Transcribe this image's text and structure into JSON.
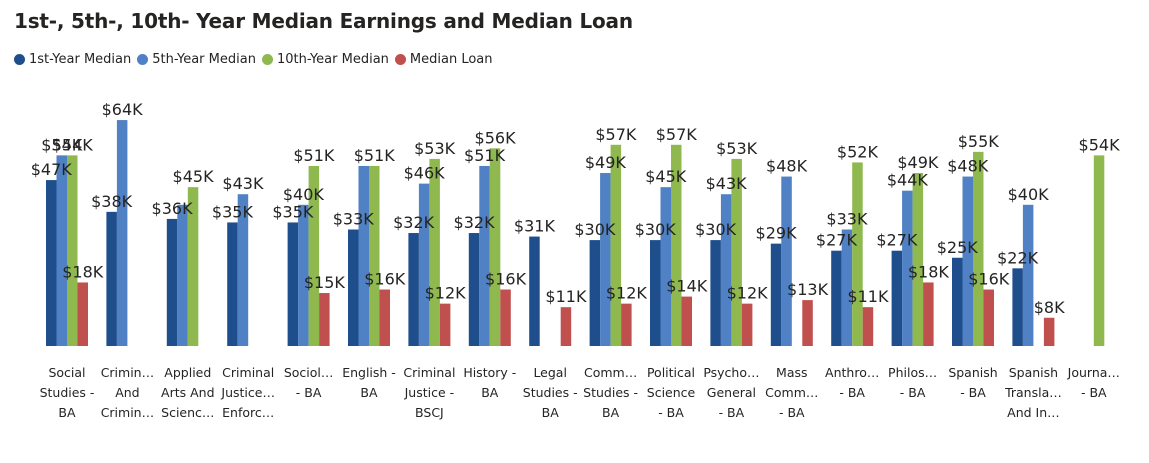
{
  "chart_data": {
    "type": "bar",
    "title": "1st-, 5th-, 10th- Year Median Earnings and Median Loan",
    "legend_position": "top-left",
    "grid": false,
    "colors": [
      "#1f4e8c",
      "#4f81c4",
      "#8fb84e",
      "#c0504d"
    ],
    "series": [
      {
        "name": "1st-Year Median",
        "values": [
          47,
          38,
          36,
          35,
          35,
          33,
          32,
          32,
          31,
          30,
          30,
          30,
          29,
          27,
          27,
          25,
          22,
          null
        ]
      },
      {
        "name": "5th-Year Median",
        "values": [
          54,
          64,
          40,
          43,
          40,
          51,
          46,
          51,
          null,
          49,
          45,
          43,
          48,
          33,
          44,
          48,
          40,
          null
        ]
      },
      {
        "name": "10th-Year Median",
        "values": [
          54,
          null,
          45,
          null,
          51,
          51,
          53,
          56,
          null,
          57,
          57,
          53,
          null,
          52,
          49,
          55,
          null,
          54
        ]
      },
      {
        "name": "Median Loan",
        "values": [
          18,
          null,
          null,
          null,
          15,
          16,
          12,
          16,
          11,
          12,
          14,
          12,
          13,
          11,
          18,
          16,
          8,
          null
        ]
      }
    ],
    "labels": [
      [
        "$47K",
        "$54K",
        "$54K",
        "$18K"
      ],
      [
        "$38K",
        "$64K",
        "",
        ""
      ],
      [
        "$36K",
        "",
        "$45K",
        ""
      ],
      [
        "$35K",
        "$43K",
        "",
        ""
      ],
      [
        "$35K",
        "$40K",
        "$51K",
        "$15K"
      ],
      [
        "$33K",
        "",
        "$51K",
        "$16K"
      ],
      [
        "$32K",
        "$46K",
        "$53K",
        "$12K"
      ],
      [
        "$32K",
        "$51K",
        "$56K",
        "$16K"
      ],
      [
        "$31K",
        "",
        "",
        "$11K"
      ],
      [
        "$30K",
        "$49K",
        "$57K",
        "$12K"
      ],
      [
        "$30K",
        "$45K",
        "$57K",
        "$14K"
      ],
      [
        "$30K",
        "$43K",
        "$53K",
        "$12K"
      ],
      [
        "$29K",
        "$48K",
        "",
        "$13K"
      ],
      [
        "$27K",
        "$33K",
        "$52K",
        "$11K"
      ],
      [
        "$27K",
        "$44K",
        "$49K",
        "$18K"
      ],
      [
        "$25K",
        "$48K",
        "$55K",
        "$16K"
      ],
      [
        "$22K",
        "$40K",
        "",
        "$8K"
      ],
      [
        "",
        "",
        "$54K",
        ""
      ]
    ],
    "categories": [
      [
        "Social",
        "Studies -",
        "BA"
      ],
      [
        "Crimin…",
        "And",
        "Crimin…"
      ],
      [
        "Applied",
        "Arts And",
        "Scienc…"
      ],
      [
        "Criminal",
        "Justice…",
        "Enforc…"
      ],
      [
        "Sociol…",
        "- BA"
      ],
      [
        "English -",
        "BA"
      ],
      [
        "Criminal",
        "Justice -",
        "BSCJ"
      ],
      [
        "History -",
        "BA"
      ],
      [
        "Legal",
        "Studies -",
        "BA"
      ],
      [
        "Comm…",
        "Studies -",
        "BA"
      ],
      [
        "Political",
        "Science",
        "- BA"
      ],
      [
        "Psycho…",
        "General",
        "- BA"
      ],
      [
        "Mass",
        "Comm…",
        "- BA"
      ],
      [
        "Anthro…",
        "- BA"
      ],
      [
        "Philos…",
        "- BA"
      ],
      [
        "Spanish",
        "- BA"
      ],
      [
        "Spanish",
        "Transla…",
        "And In…"
      ],
      [
        "Journa…",
        "- BA"
      ]
    ]
  }
}
